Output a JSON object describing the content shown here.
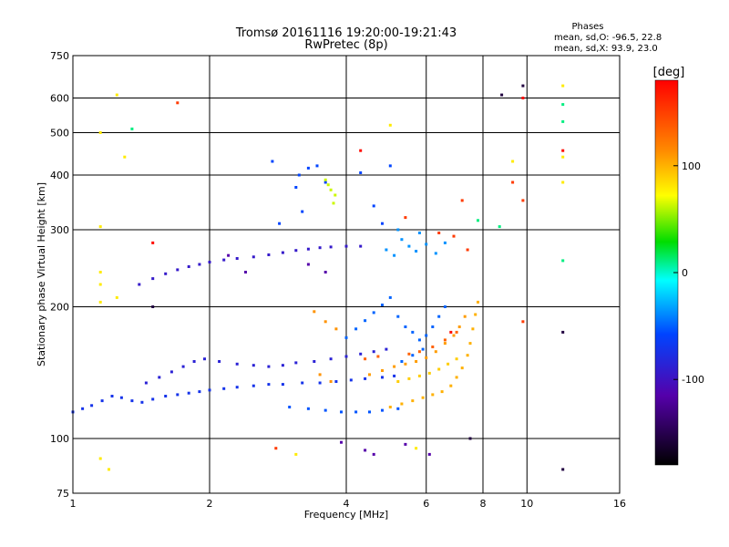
{
  "chart_data": {
    "type": "scatter",
    "title": "Tromsø 20161116 19:20:00-19:21:43",
    "subtitle": "RwPretec (8p)",
    "xlabel": "Frequency [MHz]",
    "ylabel": "Stationary phase Virtual Height [km]",
    "x_scale": "log",
    "y_scale": "log",
    "xlim": [
      1,
      16
    ],
    "ylim": [
      75,
      750
    ],
    "x_ticks": [
      1,
      2,
      4,
      6,
      8,
      10,
      16
    ],
    "x_tick_labels": [
      "1",
      "2",
      "4",
      "6",
      "8",
      "10",
      "16"
    ],
    "y_ticks": [
      75,
      100,
      200,
      300,
      400,
      500,
      600,
      750
    ],
    "y_tick_labels": [
      "75",
      "100",
      "200",
      "300",
      "400",
      "500",
      "600",
      "750"
    ],
    "grid": true,
    "phase_info": {
      "title": "Phases",
      "line_o": "mean, sd,O: -96.5, 22.8",
      "line_x": "mean, sd,X:  93.9, 23.0"
    },
    "colorbar": {
      "label": "[deg]",
      "range": [
        -180,
        180
      ],
      "ticks": [
        100,
        0,
        -100
      ],
      "tick_labels": [
        "100",
        "0",
        "-100"
      ]
    },
    "series": [
      {
        "phase_deg": -110,
        "points": [
          [
            1.0,
            115
          ],
          [
            1.05,
            117
          ],
          [
            1.1,
            119
          ],
          [
            1.16,
            122
          ],
          [
            1.22,
            125
          ],
          [
            1.28,
            124
          ],
          [
            1.35,
            122
          ],
          [
            1.42,
            121
          ],
          [
            1.5,
            123
          ],
          [
            1.6,
            125
          ],
          [
            1.7,
            126
          ],
          [
            1.8,
            127
          ],
          [
            1.9,
            128
          ],
          [
            2.0,
            129
          ],
          [
            2.15,
            130
          ],
          [
            2.3,
            131
          ],
          [
            2.5,
            132
          ],
          [
            2.7,
            133
          ],
          [
            2.9,
            133
          ],
          [
            3.2,
            134
          ],
          [
            3.5,
            134
          ],
          [
            3.8,
            135
          ],
          [
            4.1,
            136
          ],
          [
            4.4,
            137
          ],
          [
            4.8,
            138
          ],
          [
            5.1,
            139
          ]
        ]
      },
      {
        "phase_deg": -120,
        "points": [
          [
            1.45,
            134
          ],
          [
            1.55,
            138
          ],
          [
            1.65,
            142
          ],
          [
            1.75,
            146
          ],
          [
            1.85,
            150
          ],
          [
            1.95,
            152
          ],
          [
            2.1,
            150
          ],
          [
            2.3,
            148
          ],
          [
            2.5,
            147
          ],
          [
            2.7,
            146
          ],
          [
            2.9,
            147
          ],
          [
            3.1,
            149
          ],
          [
            3.4,
            150
          ],
          [
            3.7,
            152
          ],
          [
            4.0,
            154
          ],
          [
            4.3,
            156
          ],
          [
            4.6,
            158
          ],
          [
            4.9,
            160
          ]
        ]
      },
      {
        "phase_deg": -95,
        "points": [
          [
            3.0,
            118
          ],
          [
            3.3,
            117
          ],
          [
            3.6,
            116
          ],
          [
            3.9,
            115
          ],
          [
            4.2,
            115
          ],
          [
            4.5,
            115
          ],
          [
            4.8,
            116
          ],
          [
            5.2,
            117
          ]
        ]
      },
      {
        "phase_deg": -125,
        "points": [
          [
            1.4,
            225
          ],
          [
            1.5,
            232
          ],
          [
            1.6,
            238
          ],
          [
            1.7,
            243
          ],
          [
            1.8,
            247
          ],
          [
            1.9,
            250
          ],
          [
            2.0,
            253
          ],
          [
            2.15,
            256
          ],
          [
            2.3,
            258
          ],
          [
            2.5,
            260
          ],
          [
            2.7,
            263
          ],
          [
            2.9,
            266
          ],
          [
            3.1,
            269
          ],
          [
            3.3,
            271
          ],
          [
            3.5,
            273
          ],
          [
            3.7,
            274
          ],
          [
            4.0,
            275
          ],
          [
            4.3,
            275
          ]
        ]
      },
      {
        "phase_deg": -90,
        "points": [
          [
            4.0,
            170
          ],
          [
            4.2,
            178
          ],
          [
            4.4,
            186
          ],
          [
            4.6,
            194
          ],
          [
            4.8,
            202
          ],
          [
            5.0,
            210
          ],
          [
            5.2,
            190
          ],
          [
            5.4,
            180
          ],
          [
            5.6,
            175
          ],
          [
            5.8,
            168
          ],
          [
            6.0,
            172
          ],
          [
            6.2,
            180
          ],
          [
            6.4,
            190
          ],
          [
            6.6,
            200
          ],
          [
            5.3,
            150
          ],
          [
            5.6,
            155
          ],
          [
            5.9,
            160
          ]
        ]
      },
      {
        "phase_deg": -75,
        "points": [
          [
            4.9,
            270
          ],
          [
            5.1,
            262
          ],
          [
            5.3,
            285
          ],
          [
            5.5,
            275
          ],
          [
            5.7,
            268
          ],
          [
            6.0,
            278
          ],
          [
            6.3,
            265
          ],
          [
            6.6,
            280
          ],
          [
            5.2,
            300
          ],
          [
            5.8,
            295
          ]
        ]
      },
      {
        "phase_deg": 90,
        "points": [
          [
            5.0,
            118
          ],
          [
            5.3,
            120
          ],
          [
            5.6,
            122
          ],
          [
            5.9,
            124
          ],
          [
            6.2,
            126
          ],
          [
            6.5,
            128
          ],
          [
            6.8,
            132
          ],
          [
            7.0,
            138
          ],
          [
            7.2,
            145
          ],
          [
            7.4,
            155
          ],
          [
            7.5,
            165
          ],
          [
            7.6,
            178
          ],
          [
            7.7,
            192
          ],
          [
            7.8,
            205
          ]
        ]
      },
      {
        "phase_deg": 100,
        "points": [
          [
            4.5,
            140
          ],
          [
            4.8,
            143
          ],
          [
            5.1,
            146
          ],
          [
            5.4,
            148
          ],
          [
            5.7,
            150
          ],
          [
            6.0,
            153
          ],
          [
            6.3,
            158
          ],
          [
            6.6,
            165
          ],
          [
            6.9,
            172
          ],
          [
            7.1,
            180
          ],
          [
            7.3,
            190
          ]
        ]
      },
      {
        "phase_deg": 75,
        "points": [
          [
            5.2,
            135
          ],
          [
            5.5,
            137
          ],
          [
            5.8,
            139
          ],
          [
            6.1,
            141
          ],
          [
            6.4,
            144
          ],
          [
            6.7,
            148
          ],
          [
            7.0,
            152
          ]
        ]
      },
      {
        "phase_deg": 130,
        "points": [
          [
            5.5,
            156
          ],
          [
            5.8,
            158
          ],
          [
            6.2,
            162
          ],
          [
            6.6,
            168
          ],
          [
            7.0,
            175
          ],
          [
            4.4,
            152
          ],
          [
            4.7,
            154
          ]
        ]
      },
      {
        "phase_deg": 105,
        "points": [
          [
            3.4,
            195
          ],
          [
            3.6,
            185
          ],
          [
            3.8,
            178
          ],
          [
            3.5,
            140
          ],
          [
            3.7,
            135
          ]
        ]
      },
      {
        "phase_deg": -100,
        "points": [
          [
            2.75,
            430
          ],
          [
            3.15,
            400
          ],
          [
            3.3,
            415
          ],
          [
            3.45,
            420
          ],
          [
            3.6,
            385
          ],
          [
            4.3,
            405
          ],
          [
            3.2,
            330
          ],
          [
            3.1,
            375
          ],
          [
            2.85,
            310
          ],
          [
            5.0,
            420
          ],
          [
            4.6,
            340
          ],
          [
            4.8,
            310
          ]
        ]
      },
      {
        "phase_deg": 40,
        "points": [
          [
            3.6,
            390
          ],
          [
            3.7,
            370
          ],
          [
            3.78,
            360
          ],
          [
            3.75,
            345
          ],
          [
            3.65,
            380
          ]
        ]
      },
      {
        "phase_deg": 150,
        "points": [
          [
            1.7,
            585
          ],
          [
            5.4,
            320
          ],
          [
            6.4,
            295
          ],
          [
            6.9,
            290
          ],
          [
            7.2,
            350
          ],
          [
            7.4,
            270
          ],
          [
            9.3,
            385
          ],
          [
            9.8,
            350
          ],
          [
            9.8,
            185
          ],
          [
            2.8,
            95
          ]
        ]
      },
      {
        "phase_deg": 60,
        "points": [
          [
            1.15,
            500
          ],
          [
            1.25,
            610
          ],
          [
            1.3,
            440
          ],
          [
            1.15,
            305
          ],
          [
            1.15,
            240
          ],
          [
            1.15,
            225
          ],
          [
            1.15,
            205
          ],
          [
            1.25,
            210
          ],
          [
            1.15,
            90
          ],
          [
            1.2,
            85
          ],
          [
            3.1,
            92
          ],
          [
            5.0,
            520
          ],
          [
            12.0,
            440
          ],
          [
            12.0,
            385
          ],
          [
            12.0,
            640
          ],
          [
            9.3,
            430
          ],
          [
            5.7,
            95
          ]
        ]
      },
      {
        "phase_deg": -20,
        "points": [
          [
            12.0,
            580
          ],
          [
            12.0,
            530
          ],
          [
            12.0,
            255
          ],
          [
            1.35,
            510
          ],
          [
            7.8,
            315
          ],
          [
            8.7,
            305
          ]
        ]
      },
      {
        "phase_deg": -165,
        "points": [
          [
            8.8,
            610
          ],
          [
            9.8,
            640
          ],
          [
            12.0,
            85
          ],
          [
            12.0,
            175
          ],
          [
            1.5,
            200
          ],
          [
            7.5,
            100
          ]
        ]
      },
      {
        "phase_deg": 175,
        "points": [
          [
            1.5,
            280
          ],
          [
            12.0,
            455
          ],
          [
            4.3,
            455
          ],
          [
            9.8,
            600
          ],
          [
            6.8,
            175
          ]
        ]
      },
      {
        "phase_deg": -140,
        "points": [
          [
            3.9,
            98
          ],
          [
            4.4,
            94
          ],
          [
            4.6,
            92
          ],
          [
            5.4,
            97
          ],
          [
            6.1,
            92
          ],
          [
            3.3,
            250
          ],
          [
            3.6,
            240
          ],
          [
            2.4,
            240
          ],
          [
            2.2,
            262
          ]
        ]
      }
    ]
  }
}
